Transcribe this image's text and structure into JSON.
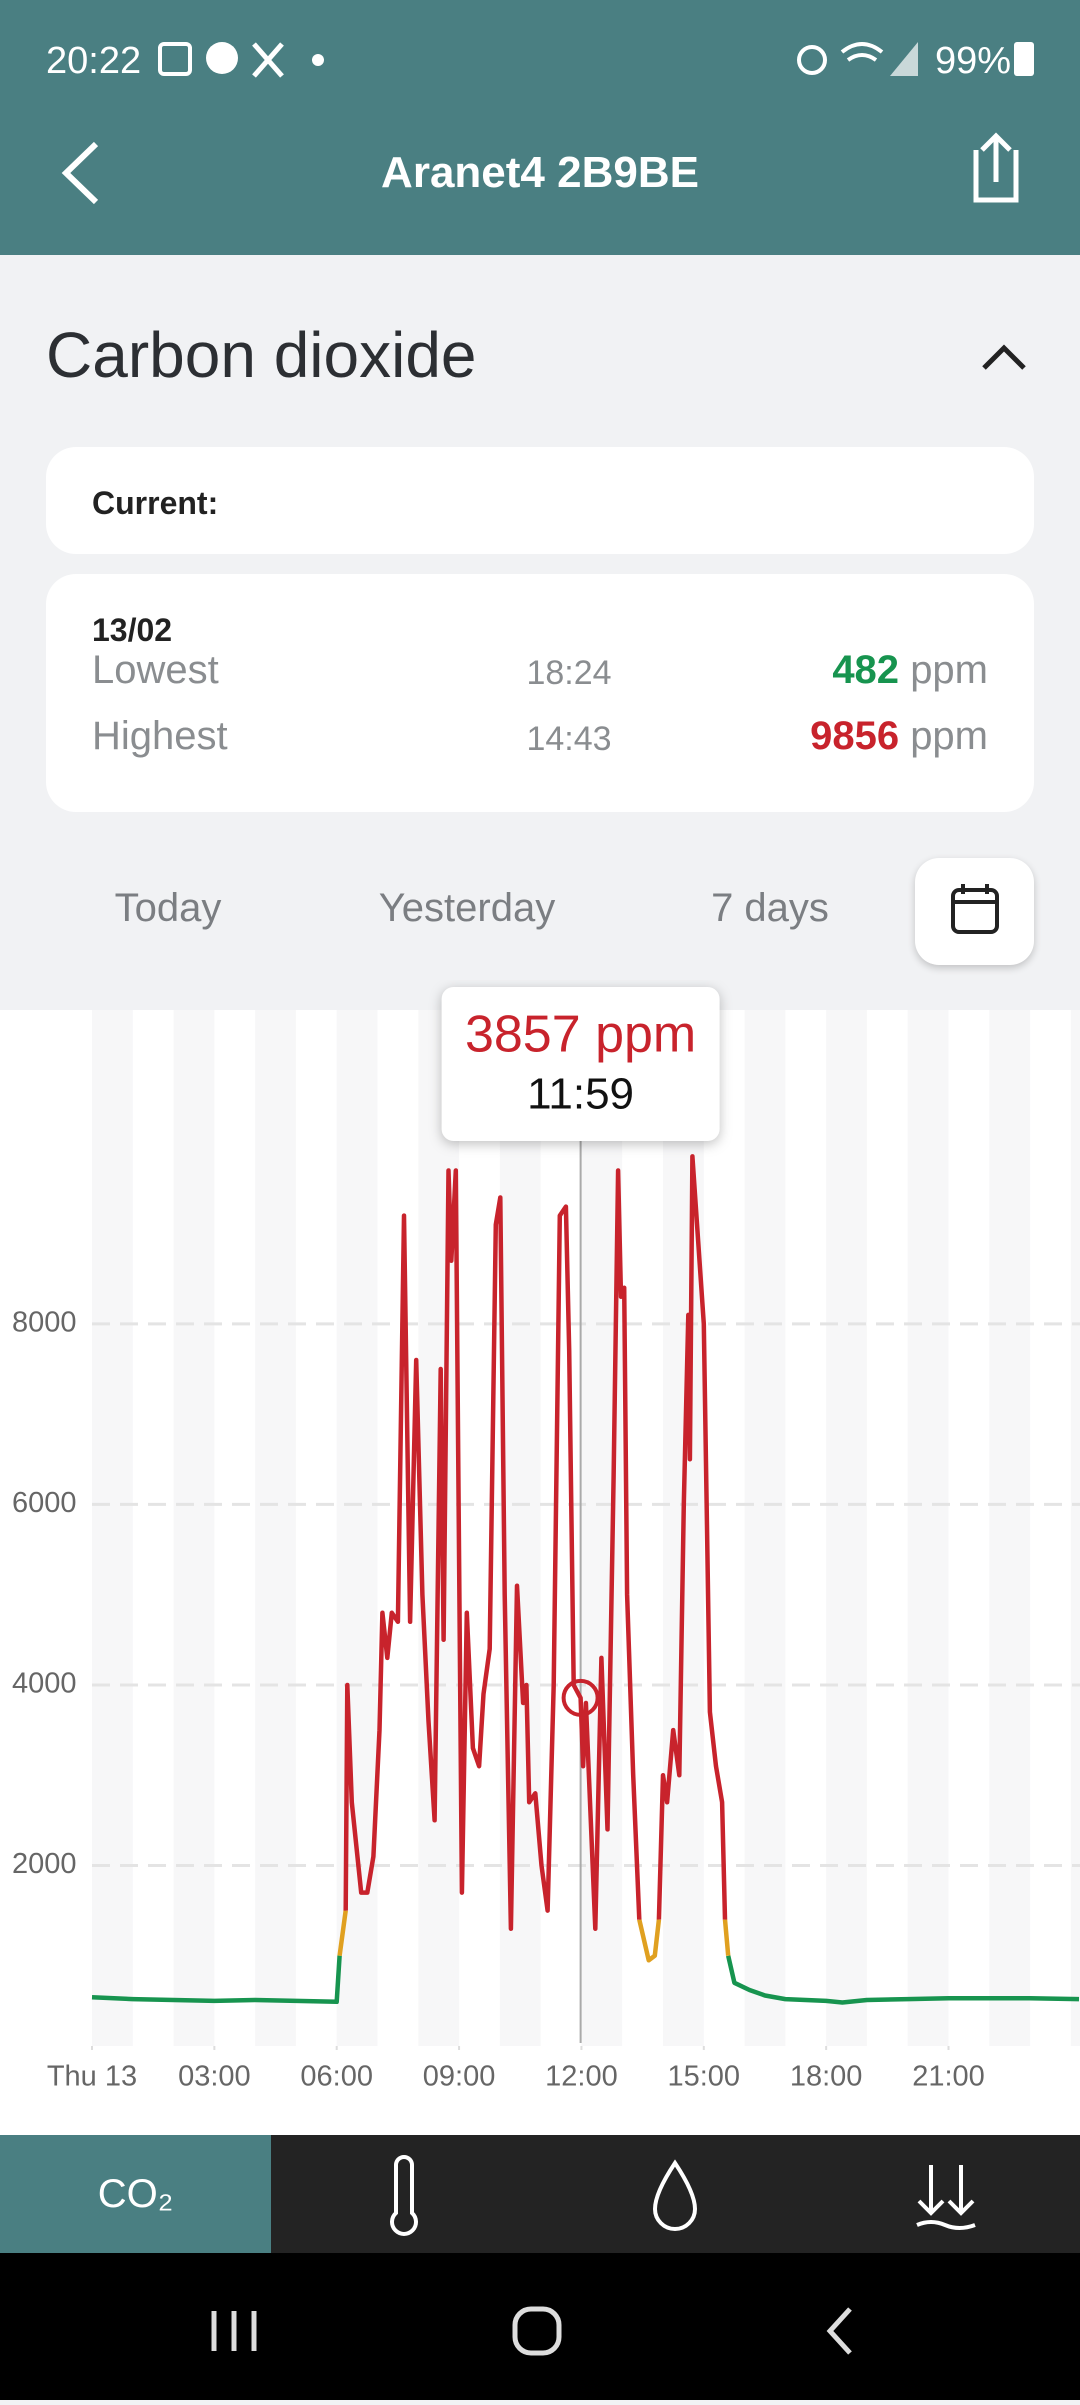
{
  "status_bar": {
    "time": "20:22",
    "battery": "99%"
  },
  "header": {
    "title": "Aranet4 2B9BE"
  },
  "section": {
    "title": "Carbon dioxide"
  },
  "current": {
    "label": "Current:"
  },
  "summary": {
    "date": "13/02",
    "rows": [
      {
        "label": "Lowest",
        "time": "18:24",
        "value": 482,
        "unit": "ppm"
      },
      {
        "label": "Highest",
        "time": "14:43",
        "value": 9856,
        "unit": "ppm"
      }
    ]
  },
  "tabs": [
    "Today",
    "Yesterday",
    "7 days"
  ],
  "chart_data": {
    "type": "line",
    "x": [
      0,
      1,
      2,
      3,
      4,
      5,
      6,
      6.07,
      6.22,
      6.26,
      6.37,
      6.6,
      6.75,
      6.9,
      7.05,
      7.12,
      7.24,
      7.35,
      7.5,
      7.65,
      7.8,
      7.95,
      8.1,
      8.25,
      8.4,
      8.55,
      8.62,
      8.74,
      8.81,
      8.92,
      9.07,
      9.19,
      9.34,
      9.49,
      9.6,
      9.75,
      9.9,
      10.01,
      10.12,
      10.27,
      10.42,
      10.57,
      10.65,
      10.72,
      10.87,
      11.02,
      11.17,
      11.32,
      11.47,
      11.62,
      11.7,
      11.81,
      11.98,
      12.04,
      12.11,
      12.22,
      12.34,
      12.49,
      12.64,
      12.79,
      12.9,
      12.97,
      13.05,
      13.12,
      13.27,
      13.42,
      13.65,
      13.8,
      13.9,
      14,
      14.1,
      14.25,
      14.4,
      14.51,
      14.62,
      14.66,
      14.72,
      15,
      15.15,
      15.3,
      15.45,
      15.52,
      15.6,
      15.75,
      16.12,
      16.5,
      17,
      18,
      18.4,
      19,
      20,
      21,
      22,
      23,
      24.2
    ],
    "series": [
      {
        "color": "#17944f",
        "values": [
          540,
          520,
          510,
          500,
          510,
          500,
          490,
          1000,
          null,
          null,
          null,
          null,
          null,
          null,
          null,
          null,
          null,
          null,
          null,
          null,
          null,
          null,
          null,
          null,
          null,
          null,
          null,
          null,
          null,
          null,
          null,
          null,
          null,
          null,
          null,
          null,
          null,
          null,
          null,
          null,
          null,
          null,
          null,
          null,
          null,
          null,
          null,
          null,
          null,
          null,
          null,
          null,
          null,
          null,
          null,
          null,
          null,
          null,
          null,
          null,
          null,
          null,
          null,
          null,
          null,
          null,
          null,
          null,
          null,
          null,
          null,
          null,
          null,
          null,
          null,
          null,
          null,
          null,
          null,
          null,
          null,
          null,
          1000,
          700,
          620,
          560,
          520,
          500,
          482,
          510,
          520,
          530,
          530,
          530,
          520
        ]
      },
      {
        "color": "#e0a020",
        "values": [
          null,
          null,
          null,
          null,
          null,
          null,
          null,
          1000,
          1500,
          null,
          null,
          null,
          null,
          null,
          null,
          null,
          null,
          null,
          null,
          null,
          null,
          null,
          null,
          null,
          null,
          null,
          null,
          null,
          null,
          null,
          null,
          null,
          null,
          null,
          null,
          null,
          null,
          null,
          null,
          null,
          null,
          null,
          null,
          null,
          null,
          null,
          null,
          null,
          null,
          null,
          null,
          null,
          null,
          null,
          null,
          null,
          null,
          null,
          null,
          null,
          null,
          null,
          null,
          null,
          null,
          1400,
          950,
          1000,
          1400,
          null,
          null,
          null,
          null,
          null,
          null,
          null,
          null,
          null,
          null,
          null,
          null,
          1400,
          1000,
          null,
          null,
          null,
          null,
          null,
          null,
          null,
          null,
          null,
          null,
          null,
          null
        ]
      },
      {
        "color": "#c8232c",
        "values": [
          null,
          null,
          null,
          null,
          null,
          null,
          null,
          null,
          1500,
          4000,
          2700,
          1700,
          1700,
          2100,
          3500,
          4800,
          4300,
          4800,
          4700,
          9200,
          4700,
          7600,
          5000,
          3600,
          2500,
          7500,
          4500,
          9700,
          8700,
          9700,
          1700,
          4800,
          3300,
          3100,
          3900,
          4400,
          9100,
          9400,
          5000,
          1300,
          5100,
          3800,
          4000,
          2700,
          2800,
          2000,
          1500,
          4000,
          9200,
          9300,
          7700,
          4000,
          3857,
          3100,
          3800,
          2600,
          1300,
          4300,
          2400,
          6300,
          9700,
          8300,
          8400,
          5000,
          3000,
          1400,
          null,
          null,
          1400,
          3000,
          2700,
          3500,
          3000,
          6000,
          8100,
          6500,
          9856,
          8000,
          3700,
          3100,
          2700,
          1400,
          null,
          null,
          null,
          null,
          null,
          null,
          null,
          null,
          null,
          null,
          null,
          null,
          null
        ]
      }
    ],
    "xlim": [
      0,
      24.2
    ],
    "ylim": [
      0,
      11500
    ],
    "xticks": [
      {
        "value": 0,
        "label": "Thu 13"
      },
      {
        "value": 3,
        "label": "03:00"
      },
      {
        "value": 6,
        "label": "06:00"
      },
      {
        "value": 9,
        "label": "09:00"
      },
      {
        "value": 12,
        "label": "12:00"
      },
      {
        "value": 15,
        "label": "15:00"
      },
      {
        "value": 18,
        "label": "18:00"
      },
      {
        "value": 21,
        "label": "21:00"
      }
    ],
    "yticks": [
      2000,
      4000,
      6000,
      8000
    ],
    "grid": true,
    "tooltip": {
      "x": 11.98,
      "value": 3857,
      "value_label": "3857 ppm",
      "time_label": "11:59"
    }
  },
  "bottom_nav": {
    "active": "CO₂"
  }
}
